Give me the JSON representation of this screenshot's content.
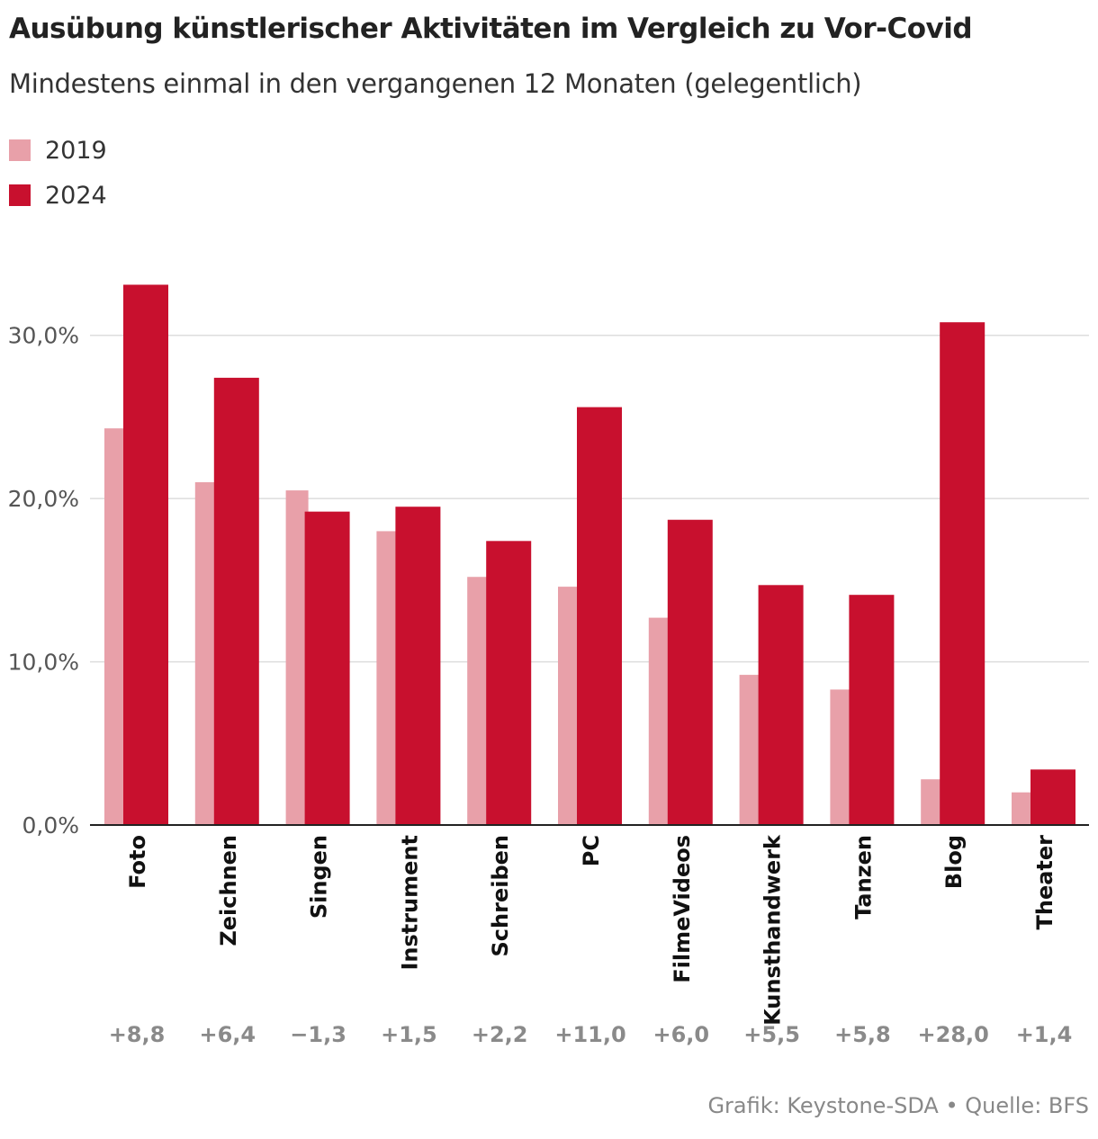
{
  "title": "Ausübung künstlerischer Aktivitäten im Vergleich zu Vor-Covid",
  "subtitle": "Mindestens einmal in den vergangenen 12 Monaten (gelegentlich)",
  "legend": [
    {
      "label": "2019",
      "color": "#e8a0a9"
    },
    {
      "label": "2024",
      "color": "#c8102e"
    }
  ],
  "source": "Grafik: Keystone-SDA • Quelle: BFS",
  "chart_data": {
    "type": "bar",
    "categories": [
      "Foto",
      "Zeichnen",
      "Singen",
      "Instrument",
      "Schreiben",
      "PC",
      "FilmeVideos",
      "Kunsthandwerk",
      "Tanzen",
      "Blog",
      "Theater"
    ],
    "series": [
      {
        "name": "2019",
        "values": [
          24.3,
          21.0,
          20.5,
          18.0,
          15.2,
          14.6,
          12.7,
          9.2,
          8.3,
          2.8,
          2.0
        ]
      },
      {
        "name": "2024",
        "values": [
          33.1,
          27.4,
          19.2,
          19.5,
          17.4,
          25.6,
          18.7,
          14.7,
          14.1,
          30.8,
          3.4
        ]
      }
    ],
    "differences": [
      "+8,8",
      "+6,4",
      "−1,3",
      "+1,5",
      "+2,2",
      "+11,0",
      "+6,0",
      "+5,5",
      "+5,8",
      "+28,0",
      "+1,4"
    ],
    "yticks": [
      "0,0%",
      "10,0%",
      "20,0%",
      "30,0%"
    ],
    "ylim": [
      0,
      35
    ],
    "grid": true
  }
}
